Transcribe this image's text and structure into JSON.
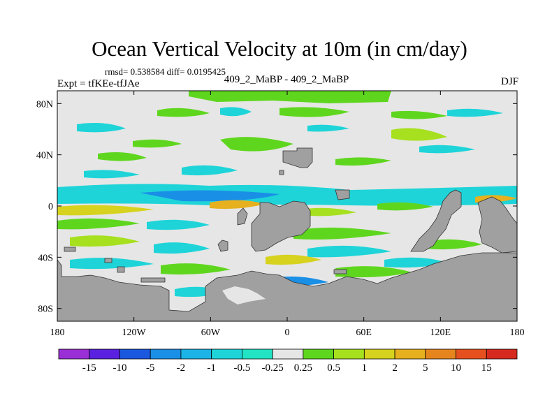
{
  "title": "Ocean Vertical Velocity at 10m (in cm/day)",
  "stats_line": "rmsd= 0.538584 diff= 0.0195425",
  "experiment": "Expt = tfKEe-tfJAe",
  "cases": "409_2_MaBP - 409_2_MaBP",
  "season": "DJF",
  "y_ticks": [
    "80N",
    "40N",
    "0",
    "40S",
    "80S"
  ],
  "x_ticks": [
    "180",
    "120W",
    "60W",
    "0",
    "60E",
    "120E",
    "180"
  ],
  "colorbar": {
    "labels": [
      "-15",
      "-10",
      "-5",
      "-2",
      "-1",
      "-0.5",
      "-0.25",
      "0.25",
      "0.5",
      "1",
      "2",
      "5",
      "10",
      "15"
    ],
    "colors": [
      "#9b2fd6",
      "#5a22e0",
      "#1b58e0",
      "#1a8fe6",
      "#1cb4e6",
      "#1ed4d8",
      "#22e4c4",
      "#e6e6e6",
      "#5fd61e",
      "#a6e01e",
      "#d6d21e",
      "#e6b01e",
      "#e6851e",
      "#e6501e",
      "#d62a1e"
    ]
  },
  "chart_data": {
    "type": "heatmap",
    "title": "Ocean Vertical Velocity at 10m (in cm/day)",
    "x_axis": {
      "range": [
        -180,
        180
      ],
      "ticks": [
        "180",
        "120W",
        "60W",
        "0",
        "60E",
        "120E",
        "180"
      ]
    },
    "y_axis": {
      "range": [
        -90,
        90
      ],
      "ticks": [
        "80N",
        "40N",
        "0",
        "40S",
        "80S"
      ]
    },
    "levels": [
      -15,
      -10,
      -5,
      -2,
      -1,
      -0.5,
      -0.25,
      0.25,
      0.5,
      1,
      2,
      5,
      10,
      15
    ],
    "land_color": "#a0a0a0",
    "missing_color": "#e6e6e6"
  }
}
